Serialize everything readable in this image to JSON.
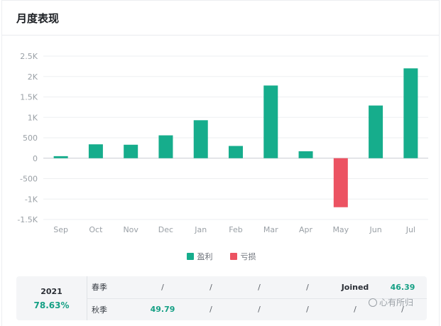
{
  "card": {
    "title": "月度表现"
  },
  "colors": {
    "profit": "#16ad8c",
    "loss": "#ec5362",
    "axis_text": "#9aa0a6",
    "grid": "#eeeff1"
  },
  "chart_data": {
    "type": "bar",
    "categories": [
      "Sep",
      "Oct",
      "Nov",
      "Dec",
      "Jan",
      "Feb",
      "Mar",
      "Apr",
      "May",
      "Jun",
      "Jul"
    ],
    "values": [
      50,
      340,
      330,
      560,
      930,
      300,
      1780,
      170,
      -1200,
      1290,
      2200
    ],
    "yticks": [
      "2.5K",
      "2K",
      "1.5K",
      "1K",
      "500",
      "0",
      "-500",
      "-1K",
      "-1.5K"
    ],
    "ylim": [
      -1500,
      2500
    ],
    "legend": [
      "盈利",
      "亏损"
    ],
    "legend_position": "bottom-center",
    "grid": true
  },
  "season_table": {
    "year": "2021",
    "total_pct": "78.63%",
    "rows": [
      {
        "label": "春季",
        "cells": [
          "/",
          "/",
          "/",
          "/",
          "Joined",
          "46.39"
        ]
      },
      {
        "label": "秋季",
        "cells": [
          "49.79",
          "/",
          "/",
          "/",
          "/",
          "/"
        ]
      }
    ]
  },
  "watermark": {
    "text": "心有所归"
  }
}
